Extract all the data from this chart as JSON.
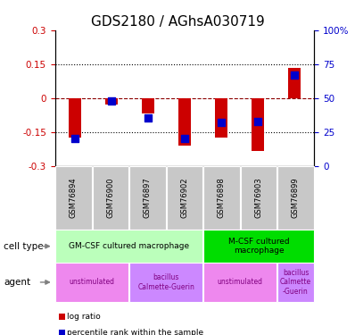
{
  "title": "GDS2180 / AGhsA030719",
  "samples": [
    "GSM76894",
    "GSM76900",
    "GSM76897",
    "GSM76902",
    "GSM76898",
    "GSM76903",
    "GSM76899"
  ],
  "log_ratio": [
    -0.175,
    -0.03,
    -0.07,
    -0.21,
    -0.175,
    -0.235,
    0.135
  ],
  "percentile_rank": [
    20,
    48,
    35,
    20,
    32,
    33,
    67
  ],
  "ylim_left": [
    -0.3,
    0.3
  ],
  "ylim_right": [
    0,
    100
  ],
  "yticks_left": [
    -0.3,
    -0.15,
    0,
    0.15,
    0.3
  ],
  "yticks_right": [
    0,
    25,
    50,
    75,
    100
  ],
  "ytick_labels_left": [
    "-0.3",
    "-0.15",
    "0",
    "0.15",
    "0.3"
  ],
  "ytick_labels_right": [
    "0",
    "25",
    "50",
    "75",
    "100%"
  ],
  "bar_color": "#cc0000",
  "dot_color": "#0000cc",
  "cell_type_groups": [
    {
      "label": "GM-CSF cultured macrophage",
      "start": 0,
      "end": 3,
      "color": "#bbffbb"
    },
    {
      "label": "M-CSF cultured\nmacrophage",
      "start": 4,
      "end": 6,
      "color": "#00dd00"
    }
  ],
  "agent_groups": [
    {
      "label": "unstimulated",
      "start": 0,
      "end": 1,
      "color": "#ee88ee"
    },
    {
      "label": "bacillus\nCalmette-Guerin",
      "start": 2,
      "end": 3,
      "color": "#cc88ff"
    },
    {
      "label": "unstimulated",
      "start": 4,
      "end": 5,
      "color": "#ee88ee"
    },
    {
      "label": "bacillus\nCalmette\n-Guerin",
      "start": 6,
      "end": 6,
      "color": "#cc88ff"
    }
  ],
  "legend_items": [
    {
      "label": "log ratio",
      "color": "#cc0000"
    },
    {
      "label": "percentile rank within the sample",
      "color": "#0000cc"
    }
  ],
  "left_color": "#cc0000",
  "right_color": "#0000cc",
  "cell_type_label": "cell type",
  "agent_label": "agent",
  "title_fontsize": 11,
  "tick_fontsize": 7.5,
  "bar_width": 0.35,
  "dot_size": 30
}
